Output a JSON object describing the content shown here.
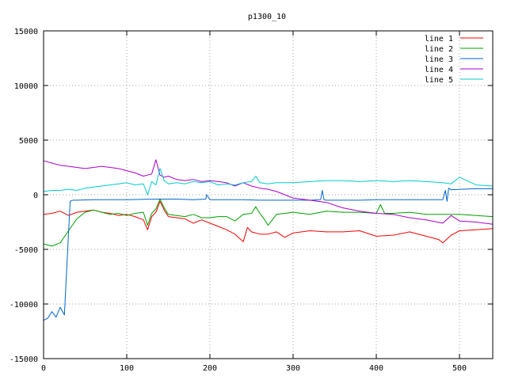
{
  "chart_data": {
    "type": "line",
    "title": "p1300_10",
    "xlabel": "",
    "ylabel": "",
    "xlim": [
      0,
      540
    ],
    "ylim": [
      -15000,
      15000
    ],
    "xticks": [
      0,
      100,
      200,
      300,
      400,
      500
    ],
    "yticks": [
      -15000,
      -10000,
      -5000,
      0,
      5000,
      10000,
      15000
    ],
    "grid": true,
    "legend_position": "top-right",
    "series": [
      {
        "name": "line 1",
        "color": "#ff0000",
        "x": [
          0,
          10,
          20,
          30,
          40,
          50,
          60,
          70,
          80,
          90,
          100,
          110,
          120,
          125,
          130,
          135,
          140,
          145,
          150,
          160,
          170,
          180,
          190,
          200,
          210,
          220,
          230,
          240,
          245,
          250,
          260,
          270,
          280,
          290,
          300,
          320,
          340,
          360,
          380,
          400,
          420,
          440,
          460,
          475,
          480,
          490,
          500,
          520,
          540
        ],
        "y": [
          -1800,
          -1700,
          -1500,
          -1900,
          -1600,
          -1500,
          -1400,
          -1600,
          -1700,
          -1900,
          -1800,
          -2000,
          -2300,
          -3200,
          -2000,
          -1600,
          -600,
          -1400,
          -2000,
          -2100,
          -2200,
          -2600,
          -2300,
          -2600,
          -2900,
          -3200,
          -3600,
          -4300,
          -3000,
          -3400,
          -3600,
          -3600,
          -3400,
          -3900,
          -3500,
          -3300,
          -3400,
          -3400,
          -3300,
          -3800,
          -3700,
          -3400,
          -3800,
          -4100,
          -4400,
          -3700,
          -3300,
          -3200,
          -3100
        ]
      },
      {
        "name": "line 2",
        "color": "#00a000",
        "x": [
          0,
          10,
          20,
          30,
          40,
          50,
          60,
          70,
          80,
          90,
          100,
          110,
          120,
          125,
          130,
          135,
          140,
          145,
          150,
          160,
          170,
          180,
          190,
          200,
          210,
          220,
          230,
          240,
          250,
          255,
          260,
          265,
          270,
          280,
          290,
          300,
          320,
          340,
          360,
          380,
          400,
          405,
          410,
          420,
          440,
          460,
          480,
          500,
          520,
          540
        ],
        "y": [
          -4500,
          -4700,
          -4400,
          -3300,
          -2200,
          -1600,
          -1400,
          -1600,
          -1800,
          -1700,
          -1900,
          -1700,
          -1600,
          -2800,
          -1700,
          -1300,
          -400,
          -1200,
          -1800,
          -1900,
          -2000,
          -1800,
          -2100,
          -2100,
          -2000,
          -2000,
          -2400,
          -1800,
          -1700,
          -1100,
          -1700,
          -2200,
          -2800,
          -1800,
          -1700,
          -1600,
          -1800,
          -1500,
          -1600,
          -1600,
          -1700,
          -900,
          -1700,
          -1700,
          -1600,
          -1800,
          -1800,
          -1800,
          -1900,
          -2000
        ]
      },
      {
        "name": "line 3",
        "color": "#0066cc",
        "x": [
          0,
          5,
          10,
          15,
          20,
          25,
          30,
          32,
          35,
          40,
          60,
          80,
          100,
          120,
          140,
          160,
          180,
          195,
          196,
          200,
          220,
          240,
          260,
          280,
          300,
          320,
          333,
          335,
          337,
          340,
          360,
          380,
          400,
          420,
          440,
          460,
          480,
          483,
          485,
          487,
          490,
          500,
          520,
          540
        ],
        "y": [
          -11500,
          -11300,
          -10700,
          -11200,
          -10300,
          -11000,
          -3500,
          -600,
          -500,
          -500,
          -450,
          -450,
          -450,
          -420,
          -400,
          -400,
          -450,
          -400,
          0,
          -450,
          -450,
          -450,
          -500,
          -500,
          -500,
          -500,
          -450,
          400,
          -450,
          -500,
          -500,
          -500,
          -450,
          -450,
          -450,
          -450,
          -450,
          400,
          -600,
          600,
          450,
          500,
          550,
          550
        ]
      },
      {
        "name": "line 4",
        "color": "#aa00cc",
        "x": [
          0,
          10,
          20,
          30,
          40,
          50,
          60,
          70,
          80,
          90,
          100,
          110,
          120,
          130,
          135,
          140,
          145,
          150,
          160,
          170,
          180,
          190,
          200,
          210,
          220,
          230,
          240,
          250,
          260,
          270,
          280,
          290,
          300,
          320,
          340,
          360,
          380,
          400,
          420,
          440,
          460,
          480,
          490,
          500,
          520,
          540
        ],
        "y": [
          3100,
          2900,
          2700,
          2600,
          2500,
          2400,
          2500,
          2600,
          2500,
          2400,
          2200,
          2000,
          1700,
          1900,
          3200,
          1800,
          1600,
          1700,
          1400,
          1300,
          1400,
          1200,
          1300,
          1200,
          1100,
          800,
          1100,
          800,
          600,
          500,
          300,
          0,
          -300,
          -500,
          -700,
          -1200,
          -1500,
          -1700,
          -1800,
          -2100,
          -2300,
          -2600,
          -1900,
          -2400,
          -2500,
          -2700
        ]
      },
      {
        "name": "line 5",
        "color": "#00cccc",
        "x": [
          0,
          10,
          20,
          30,
          40,
          50,
          60,
          70,
          80,
          90,
          100,
          110,
          120,
          125,
          130,
          135,
          140,
          145,
          150,
          160,
          170,
          180,
          190,
          200,
          210,
          220,
          230,
          240,
          250,
          255,
          260,
          270,
          280,
          300,
          320,
          340,
          360,
          380,
          400,
          420,
          440,
          460,
          480,
          490,
          500,
          520,
          540
        ],
        "y": [
          300,
          400,
          400,
          500,
          400,
          600,
          700,
          800,
          900,
          1000,
          1100,
          900,
          1000,
          0,
          1200,
          900,
          2400,
          1300,
          1000,
          1100,
          1000,
          1200,
          1100,
          1200,
          900,
          1000,
          900,
          1100,
          1200,
          1700,
          1100,
          1000,
          1100,
          1100,
          1200,
          1300,
          1300,
          1200,
          1300,
          1200,
          1300,
          1200,
          1100,
          1000,
          1600,
          900,
          800
        ]
      }
    ]
  }
}
